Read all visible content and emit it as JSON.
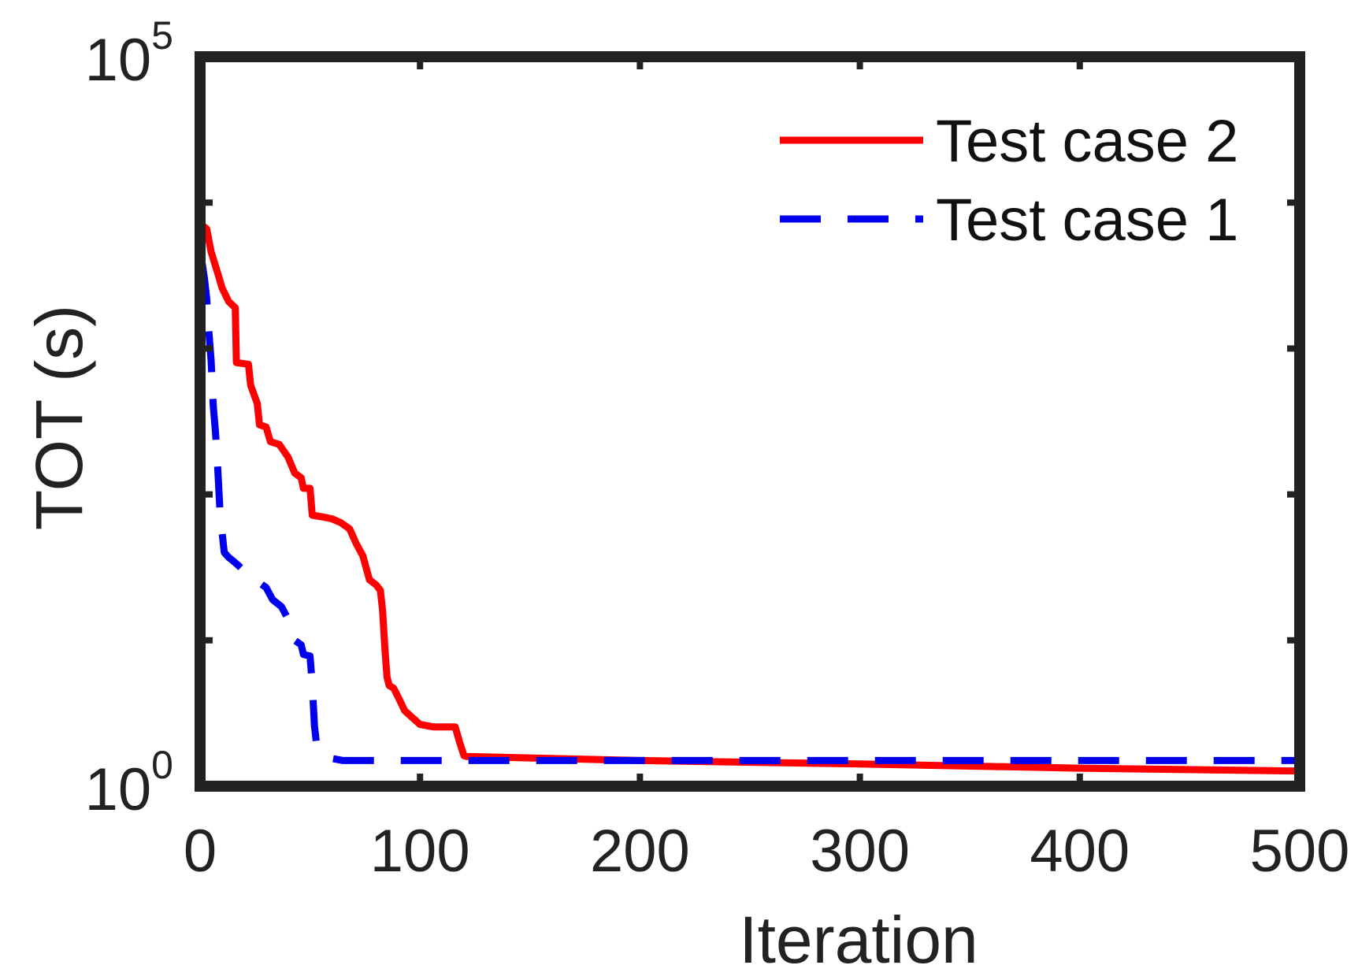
{
  "chart_data": {
    "type": "line",
    "xlabel": "Iteration",
    "ylabel": "TOT (s)",
    "xlim": [
      0,
      500
    ],
    "ylim": [
      1,
      100000
    ],
    "yscale": "log",
    "grid": false,
    "legend_position": "top-right",
    "x_ticks": [
      {
        "value": 0,
        "label": "0"
      },
      {
        "value": 100,
        "label": "100"
      },
      {
        "value": 200,
        "label": "200"
      },
      {
        "value": 300,
        "label": "300"
      },
      {
        "value": 400,
        "label": "400"
      },
      {
        "value": 500,
        "label": "500"
      }
    ],
    "y_ticks": [
      {
        "value": 1,
        "base": "10",
        "exp": "0"
      },
      {
        "value": 100000,
        "base": "10",
        "exp": "5"
      }
    ],
    "series": [
      {
        "name": "Test case 2",
        "color": "#ff0000",
        "style": "solid",
        "points": [
          [
            1,
            7000
          ],
          [
            3,
            6600
          ],
          [
            5,
            4600
          ],
          [
            8,
            3300
          ],
          [
            10,
            2600
          ],
          [
            13,
            2100
          ],
          [
            16,
            1900
          ],
          [
            16.5,
            800
          ],
          [
            22,
            780
          ],
          [
            23,
            560
          ],
          [
            26,
            420
          ],
          [
            27,
            300
          ],
          [
            30,
            290
          ],
          [
            32,
            230
          ],
          [
            36,
            220
          ],
          [
            40,
            180
          ],
          [
            43,
            140
          ],
          [
            46,
            130
          ],
          [
            47,
            110
          ],
          [
            50,
            110
          ],
          [
            51,
            72
          ],
          [
            56,
            70
          ],
          [
            60,
            68
          ],
          [
            64,
            64
          ],
          [
            68,
            58
          ],
          [
            71,
            46
          ],
          [
            74,
            38
          ],
          [
            77,
            26
          ],
          [
            80,
            24
          ],
          [
            82,
            22
          ],
          [
            83,
            16
          ],
          [
            84,
            9
          ],
          [
            85,
            5.6
          ],
          [
            86,
            4.9
          ],
          [
            88,
            4.7
          ],
          [
            90,
            4.1
          ],
          [
            93,
            3.3
          ],
          [
            96,
            3.0
          ],
          [
            100,
            2.65
          ],
          [
            106,
            2.55
          ],
          [
            110,
            2.55
          ],
          [
            116,
            2.55
          ],
          [
            118,
            2.0
          ],
          [
            120,
            1.62
          ],
          [
            121,
            1.6
          ],
          [
            200,
            1.5
          ],
          [
            300,
            1.42
          ],
          [
            400,
            1.33
          ],
          [
            500,
            1.27
          ]
        ]
      },
      {
        "name": "Test case 1",
        "color": "#0000ee",
        "style": "dashed",
        "points": [
          [
            1,
            3800
          ],
          [
            2,
            3000
          ],
          [
            3,
            2200
          ],
          [
            4,
            1300
          ],
          [
            5,
            830
          ],
          [
            6,
            400
          ],
          [
            7,
            270
          ],
          [
            8,
            155
          ],
          [
            9,
            80
          ],
          [
            10,
            55
          ],
          [
            11,
            40
          ],
          [
            13,
            37
          ],
          [
            15,
            35
          ],
          [
            17,
            33
          ],
          [
            20,
            30
          ],
          [
            25,
            26
          ],
          [
            30,
            23
          ],
          [
            33,
            19
          ],
          [
            37,
            17
          ],
          [
            40,
            14
          ],
          [
            43,
            10
          ],
          [
            46,
            9.3
          ],
          [
            47,
            8
          ],
          [
            50,
            7.8
          ],
          [
            51,
            5
          ],
          [
            52,
            2.6
          ],
          [
            53,
            1.9
          ],
          [
            55,
            1.72
          ],
          [
            57,
            1.6
          ],
          [
            60,
            1.55
          ],
          [
            65,
            1.5
          ],
          [
            500,
            1.5
          ]
        ]
      }
    ]
  }
}
